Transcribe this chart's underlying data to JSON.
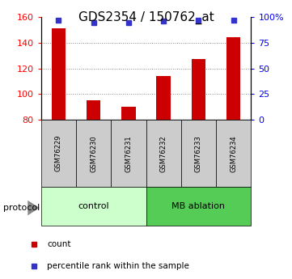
{
  "title": "GDS2354 / 150762_at",
  "samples": [
    "GSM76229",
    "GSM76230",
    "GSM76231",
    "GSM76232",
    "GSM76233",
    "GSM76234"
  ],
  "counts": [
    151,
    95,
    90,
    114,
    127,
    144
  ],
  "percentile_ranks": [
    97,
    94,
    94,
    96,
    97,
    97
  ],
  "ylim_left": [
    80,
    160
  ],
  "ylim_right": [
    0,
    100
  ],
  "yticks_left": [
    80,
    100,
    120,
    140,
    160
  ],
  "yticks_right": [
    0,
    25,
    50,
    75,
    100
  ],
  "ytick_labels_right": [
    "0",
    "25",
    "50",
    "75",
    "100%"
  ],
  "bar_color": "#cc0000",
  "dot_color": "#3333cc",
  "bar_width": 0.4,
  "sample_box_color": "#cccccc",
  "control_color": "#ccffcc",
  "mb_color": "#55cc55",
  "grid_color": "#888888",
  "title_fontsize": 11,
  "tick_fontsize": 8,
  "sample_fontsize": 6,
  "group_fontsize": 8,
  "legend_fontsize": 7.5,
  "protocol_fontsize": 8,
  "dot_size": 5,
  "gridlines": [
    100,
    120,
    140
  ],
  "group_bounds": [
    [
      -0.5,
      2.5,
      "control",
      "#ccffcc"
    ],
    [
      2.5,
      5.5,
      "MB ablation",
      "#55cc55"
    ]
  ]
}
